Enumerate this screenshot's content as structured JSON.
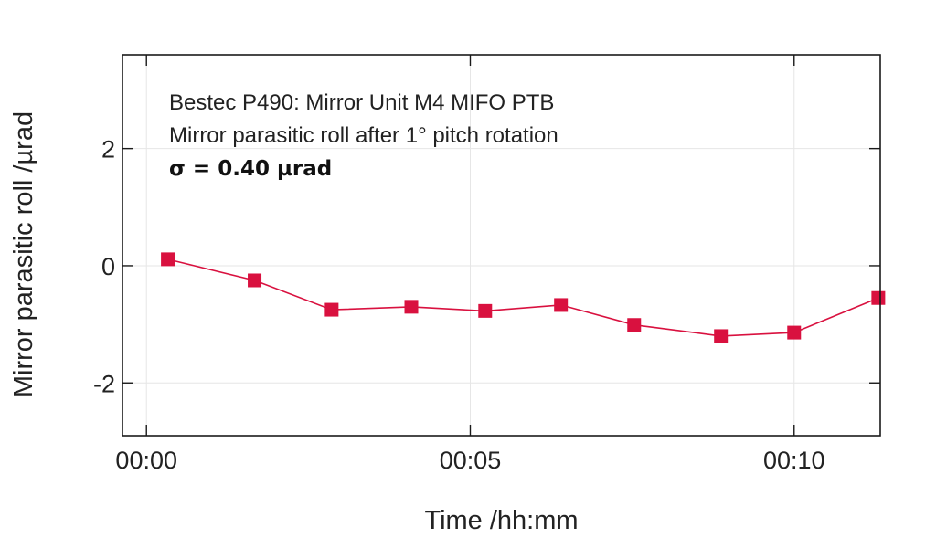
{
  "chart_data": {
    "type": "line",
    "title": "",
    "xlabel": "Time /hh:mm",
    "ylabel": "Mirror parasitic roll /µrad",
    "annotations": [
      "Bestec P490: Mirror Unit M4 MIFO PTB",
      "Mirror parasitic roll after 1° pitch rotation",
      "σ = 0.40 µrad"
    ],
    "x_unit": "minutes",
    "x_ticks": [
      0,
      5,
      10
    ],
    "x_tick_labels": [
      "00:00",
      "00:05",
      "00:10"
    ],
    "xlim": [
      -0.37,
      11.33
    ],
    "y_ticks": [
      -2,
      0,
      2
    ],
    "y_tick_labels": [
      "-2",
      "0",
      "2"
    ],
    "ylim": [
      -2.9,
      3.6
    ],
    "grid": true,
    "color": "#d9113f",
    "series": [
      {
        "name": "",
        "x": [
          0.33,
          1.67,
          2.86,
          4.09,
          5.23,
          6.4,
          7.53,
          8.87,
          10.0,
          11.3
        ],
        "y": [
          0.11,
          -0.25,
          -0.75,
          -0.7,
          -0.77,
          -0.67,
          -1.01,
          -1.2,
          -1.14,
          -0.55
        ]
      }
    ]
  }
}
